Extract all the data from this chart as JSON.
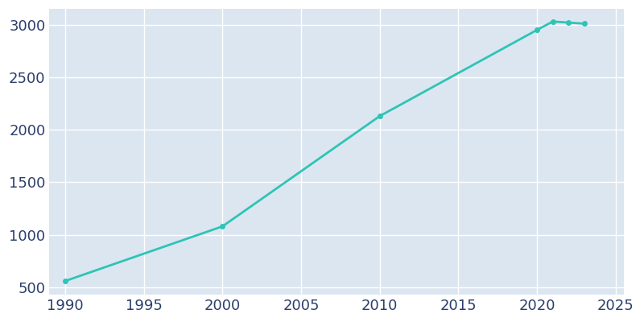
{
  "years": [
    1990,
    2000,
    2010,
    2020,
    2021,
    2022,
    2023
  ],
  "population": [
    560,
    1080,
    2130,
    2950,
    3030,
    3020,
    3010
  ],
  "line_color": "#2ec4b6",
  "marker_style": "o",
  "marker_size": 4,
  "line_width": 2,
  "axes_bg_color": "#dce6f0",
  "fig_bg_color": "#ffffff",
  "grid_color": "#ffffff",
  "xlim": [
    1989,
    2025.5
  ],
  "ylim": [
    430,
    3150
  ],
  "xticks": [
    1990,
    1995,
    2000,
    2005,
    2010,
    2015,
    2020,
    2025
  ],
  "yticks": [
    500,
    1000,
    1500,
    2000,
    2500,
    3000
  ],
  "tick_color": "#2c3e6b",
  "tick_labelsize": 13,
  "spine_visible": false
}
